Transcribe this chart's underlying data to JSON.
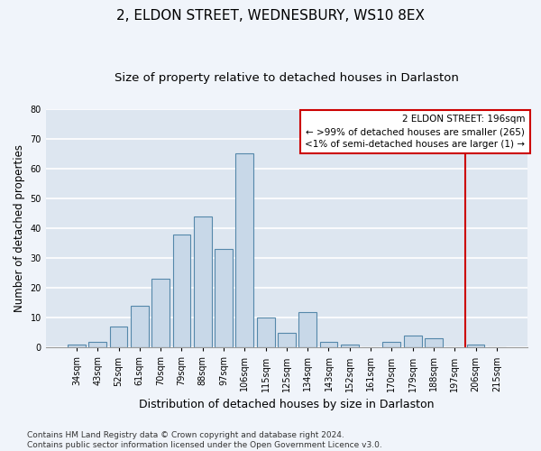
{
  "title1": "2, ELDON STREET, WEDNESBURY, WS10 8EX",
  "title2": "Size of property relative to detached houses in Darlaston",
  "xlabel": "Distribution of detached houses by size in Darlaston",
  "ylabel": "Number of detached properties",
  "categories": [
    "34sqm",
    "43sqm",
    "52sqm",
    "61sqm",
    "70sqm",
    "79sqm",
    "88sqm",
    "97sqm",
    "106sqm",
    "115sqm",
    "125sqm",
    "134sqm",
    "143sqm",
    "152sqm",
    "161sqm",
    "170sqm",
    "179sqm",
    "188sqm",
    "197sqm",
    "206sqm",
    "215sqm"
  ],
  "values": [
    1,
    2,
    7,
    14,
    23,
    38,
    44,
    33,
    65,
    10,
    5,
    12,
    2,
    1,
    0,
    2,
    4,
    3,
    0,
    1,
    0
  ],
  "bar_color": "#c8d8e8",
  "bar_edge_color": "#5588aa",
  "background_color": "#dde6f0",
  "grid_color": "#ffffff",
  "fig_bg_color": "#f0f4fa",
  "ylim": [
    0,
    80
  ],
  "yticks": [
    0,
    10,
    20,
    30,
    40,
    50,
    60,
    70,
    80
  ],
  "vline_x_index": 18.5,
  "vline_color": "#cc0000",
  "annotation_line1": "2 ELDON STREET: 196sqm",
  "annotation_line2": "← >99% of detached houses are smaller (265)",
  "annotation_line3": "<1% of semi-detached houses are larger (1) →",
  "annotation_box_color": "#cc0000",
  "footer": "Contains HM Land Registry data © Crown copyright and database right 2024.\nContains public sector information licensed under the Open Government Licence v3.0.",
  "title1_fontsize": 11,
  "title2_fontsize": 9.5,
  "xlabel_fontsize": 9,
  "ylabel_fontsize": 8.5,
  "tick_fontsize": 7,
  "annotation_fontsize": 7.5,
  "footer_fontsize": 6.5
}
